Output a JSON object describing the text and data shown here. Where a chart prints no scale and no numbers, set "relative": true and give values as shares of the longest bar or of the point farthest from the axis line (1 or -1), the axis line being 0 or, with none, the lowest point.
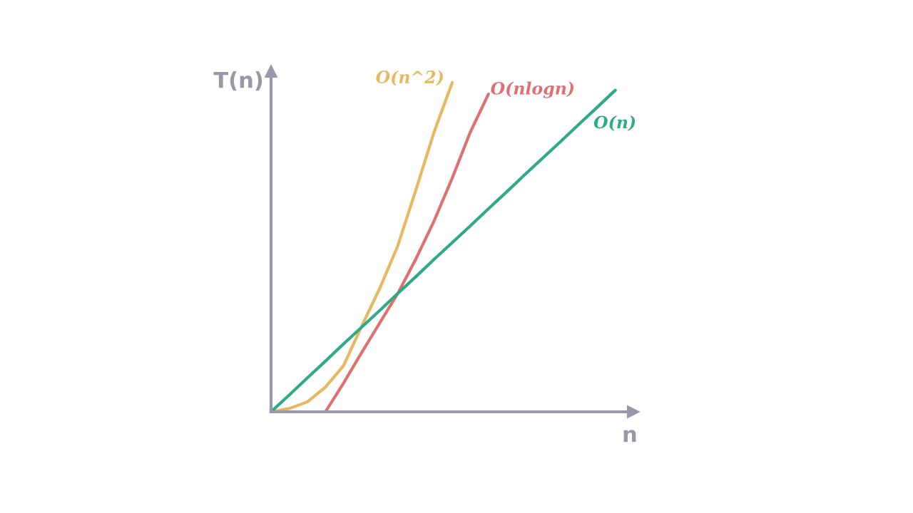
{
  "chart_data": {
    "type": "line",
    "relative": true,
    "xlabel": "n",
    "ylabel": "T(n)",
    "tick_labels": false,
    "legend": false,
    "marker": "none",
    "line_style": "solid",
    "categories": [
      null,
      null,
      null,
      null,
      null,
      null,
      null,
      null,
      null,
      null,
      null,
      null,
      null,
      null,
      null,
      null,
      null,
      null,
      null,
      null,
      null
    ],
    "series": [
      {
        "name": "O(n^2)",
        "color": "#e8b860",
        "values": [
          0,
          0.01,
          0.03,
          0.075,
          0.14,
          0.26,
          0.375,
          0.505,
          0.675,
          0.85,
          1.0,
          null,
          null,
          null,
          null,
          null,
          null,
          null,
          null,
          null,
          null
        ]
      },
      {
        "name": "O(nlogn)",
        "color": "#e07070",
        "values": [
          null,
          null,
          null,
          0,
          0.087,
          0.18,
          0.27,
          0.36,
          0.465,
          0.58,
          0.71,
          0.85,
          0.965,
          null,
          null,
          null,
          null,
          null,
          null,
          null,
          null
        ]
      },
      {
        "name": "O(n)",
        "color": "#2faa88",
        "values": [
          0,
          0.051,
          0.103,
          0.154,
          0.206,
          0.257,
          0.308,
          0.36,
          0.411,
          0.463,
          0.514,
          0.565,
          0.617,
          0.668,
          0.72,
          0.771,
          0.822,
          0.874,
          0.925,
          0.977,
          null
        ]
      }
    ]
  }
}
